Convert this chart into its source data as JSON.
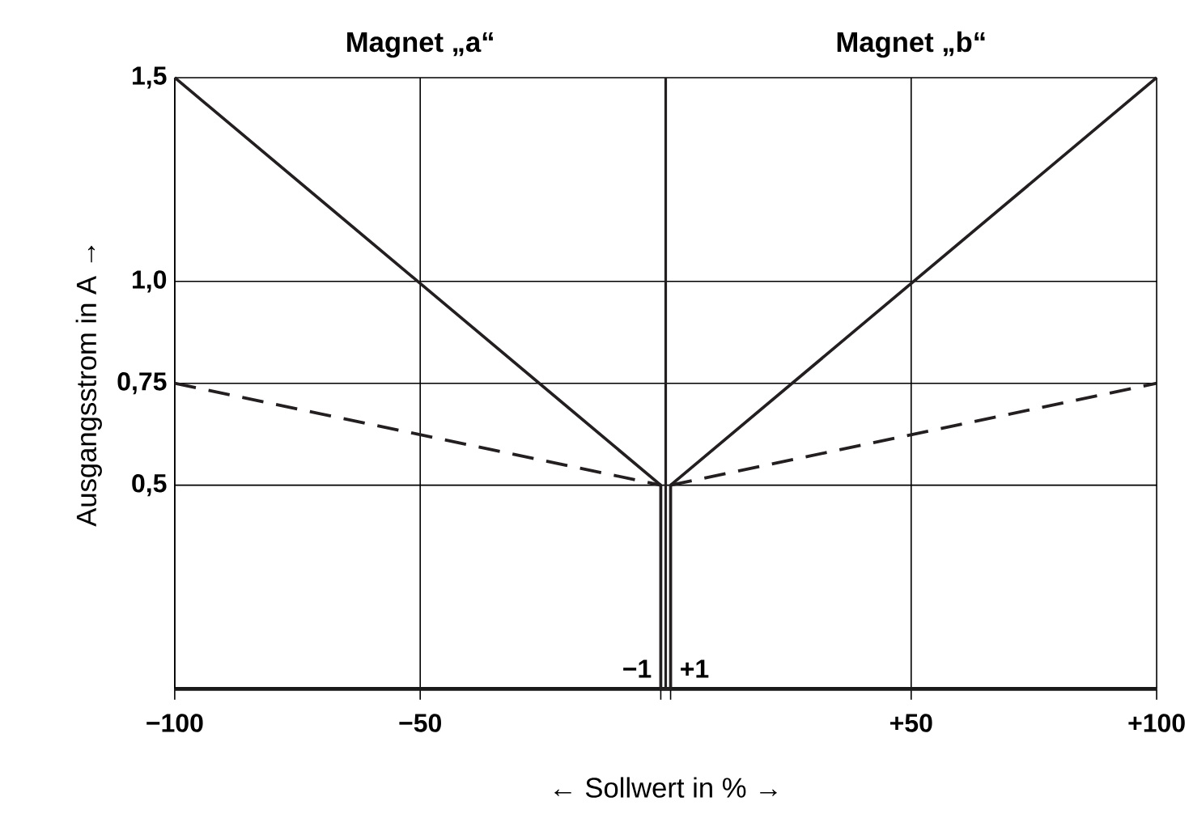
{
  "chart_data": {
    "type": "line",
    "xlabel": "← Sollwert in % →",
    "ylabel": "Ausgangsstrom in A →",
    "annotations": [
      "Magnet „a“",
      "Magnet „b“",
      {
        "text": "−1",
        "x": -1,
        "y": 0
      },
      {
        "text": "+1",
        "x": 1,
        "y": 0
      }
    ],
    "series": [
      {
        "x": [
          -100,
          -1,
          -1,
          1,
          1,
          100
        ],
        "values": [
          1.5,
          0.5,
          0,
          0,
          0.5,
          1.5
        ],
        "color": "#231f20",
        "line_style": "solid"
      },
      {
        "x": [
          -100,
          -1,
          0,
          1,
          100
        ],
        "values": [
          0.75,
          0.5,
          null,
          0.5,
          0.75
        ],
        "color": "#231f20",
        "line_style": "dashed"
      }
    ],
    "ref_lines": [
      {
        "axis": "x",
        "value": 0,
        "color": "#231f20"
      }
    ],
    "xlim": [
      -100,
      100
    ],
    "ylim": [
      0,
      1.5
    ],
    "xticks": [
      {
        "value": -100,
        "label": "−100"
      },
      {
        "value": -50,
        "label": "−50"
      },
      {
        "value": -1,
        "label": null
      },
      {
        "value": 1,
        "label": null
      },
      {
        "value": 50,
        "label": "+50"
      },
      {
        "value": 100,
        "label": "+100"
      }
    ],
    "yticks": [
      {
        "value": 0.5,
        "label": "0,5"
      },
      {
        "value": 0.75,
        "label": "0,75"
      },
      {
        "value": 1.0,
        "label": "1,0"
      },
      {
        "value": 1.5,
        "label": "1,5"
      }
    ],
    "grid": true,
    "marker": "none"
  }
}
